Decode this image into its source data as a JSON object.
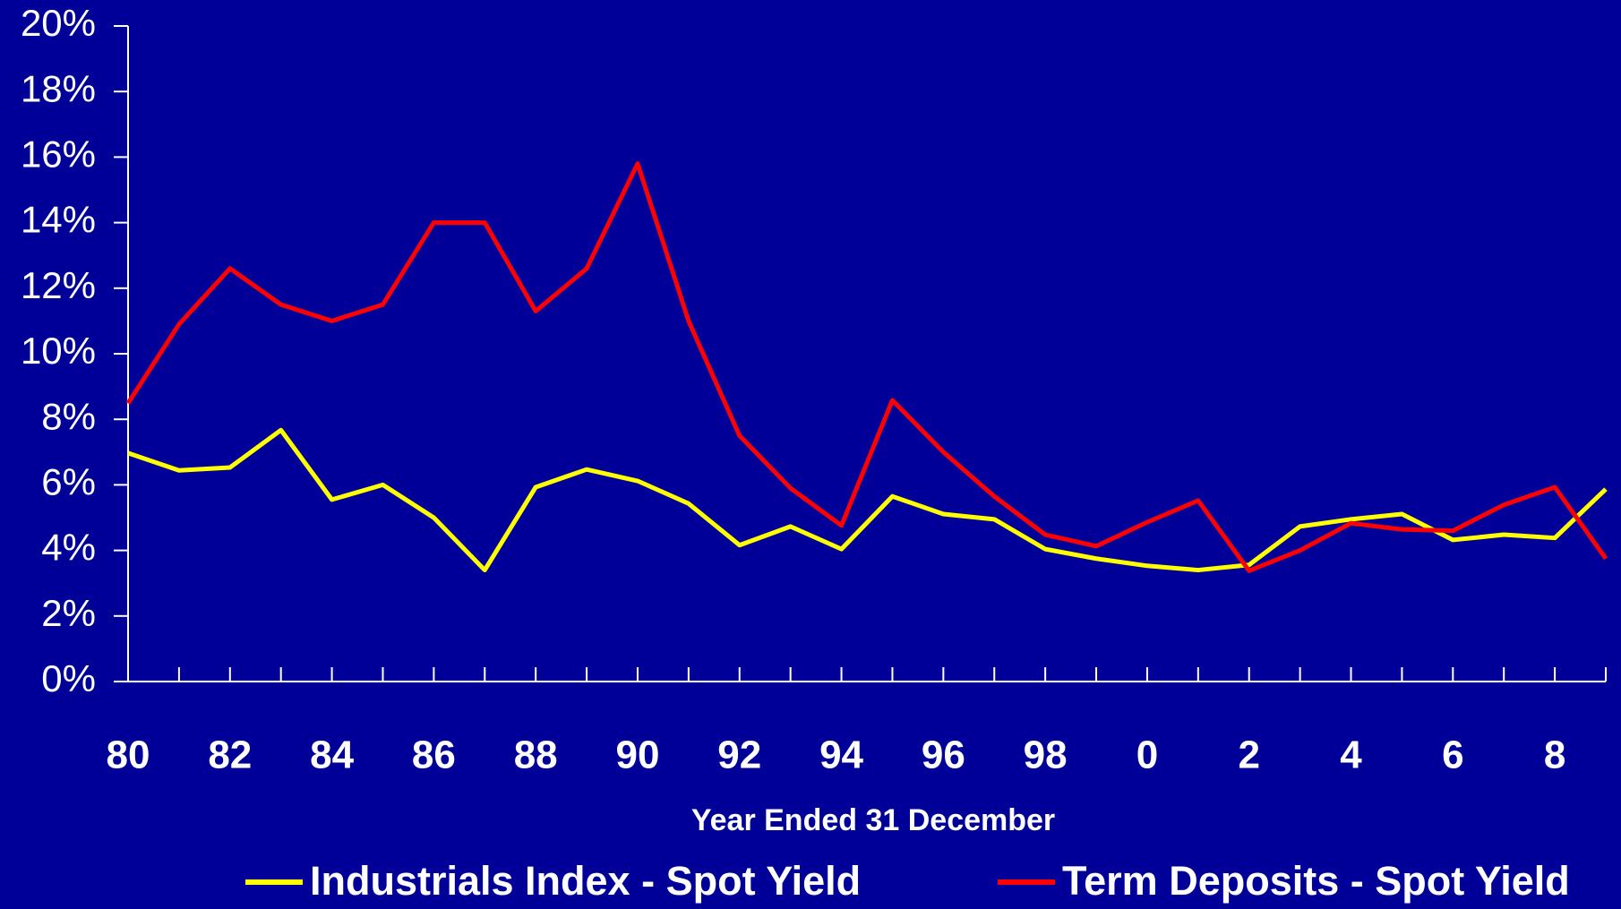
{
  "chart_data": {
    "type": "line",
    "xlabel": "Year Ended 31 December",
    "categories": [
      "80",
      null,
      "82",
      null,
      "84",
      null,
      "86",
      null,
      "88",
      null,
      "90",
      null,
      "92",
      null,
      "94",
      null,
      "96",
      null,
      "98",
      null,
      "0",
      null,
      "2",
      null,
      "4",
      null,
      "6",
      null,
      "8",
      null
    ],
    "series": [
      {
        "name": "Industrials Index - Spot Yield",
        "color": "#ffff00",
        "values": [
          6.97,
          6.44,
          6.53,
          7.67,
          5.55,
          6.0,
          5.0,
          3.4,
          5.93,
          6.47,
          6.12,
          5.43,
          4.16,
          4.73,
          4.04,
          5.65,
          5.11,
          4.95,
          4.04,
          3.75,
          3.53,
          3.4,
          3.56,
          4.73,
          4.95,
          5.11,
          4.32,
          4.48,
          4.38,
          5.87
        ]
      },
      {
        "name": "Term Deposits - Spot Yield",
        "color": "#ff0000",
        "values": [
          8.49,
          10.9,
          12.6,
          11.5,
          11.0,
          11.5,
          14.0,
          14.0,
          11.3,
          12.6,
          15.8,
          11.0,
          7.5,
          5.9,
          4.76,
          8.58,
          7.0,
          5.65,
          4.48,
          4.13,
          4.86,
          5.52,
          3.38,
          4.0,
          4.83,
          4.64,
          4.6,
          5.39,
          5.93,
          3.75
        ]
      }
    ],
    "ylim": [
      0,
      20
    ],
    "yticks": [
      {
        "value": 0,
        "label": "0%"
      },
      {
        "value": 2,
        "label": "2%"
      },
      {
        "value": 4,
        "label": "4%"
      },
      {
        "value": 6,
        "label": "6%"
      },
      {
        "value": 8,
        "label": "8%"
      },
      {
        "value": 10,
        "label": "10%"
      },
      {
        "value": 12,
        "label": "12%"
      },
      {
        "value": 14,
        "label": "14%"
      },
      {
        "value": 16,
        "label": "16%"
      },
      {
        "value": 18,
        "label": "18%"
      },
      {
        "value": 20,
        "label": "20%"
      }
    ],
    "background": "#000099"
  }
}
